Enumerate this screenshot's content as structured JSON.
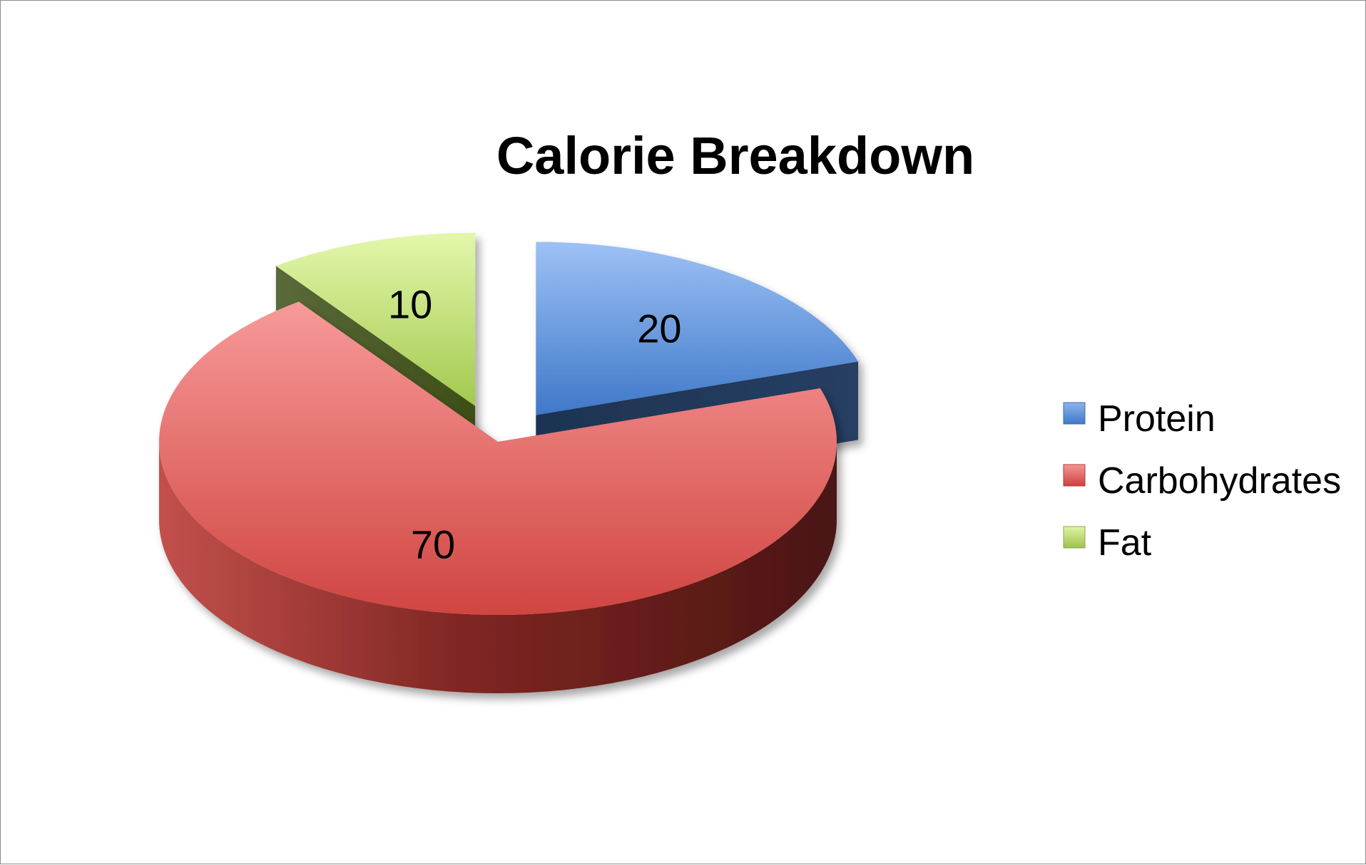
{
  "chart_data": {
    "type": "pie",
    "title": "Calorie Breakdown",
    "categories": [
      "Protein",
      "Carbohydrates",
      "Fat"
    ],
    "values": [
      20,
      70,
      10
    ],
    "exploded": true,
    "three_d": true,
    "legend_position": "right",
    "colors": {
      "Protein": "#4f81bd",
      "Carbohydrates": "#c0504d",
      "Fat": "#9bbb59"
    }
  }
}
